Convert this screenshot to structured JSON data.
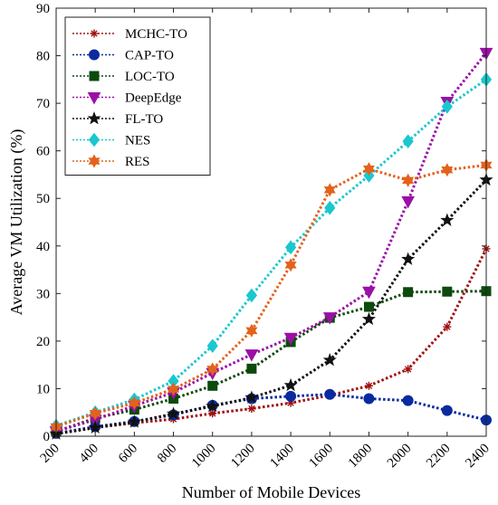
{
  "chart_data": {
    "type": "line",
    "xlabel": "Number of Mobile Devices",
    "ylabel": "Average VM Utilization (%)",
    "x": [
      200,
      400,
      600,
      800,
      1000,
      1200,
      1400,
      1600,
      1800,
      2000,
      2200,
      2400
    ],
    "xlim": [
      200,
      2400
    ],
    "ylim": [
      0,
      90
    ],
    "yticks": [
      0,
      10,
      20,
      30,
      40,
      50,
      60,
      70,
      80,
      90
    ],
    "grid": false,
    "legend_position": "top-left",
    "series": [
      {
        "name": "MCHC-TO",
        "color": "#a01010",
        "marker": "asterisk",
        "values": [
          0.5,
          1.8,
          2.8,
          3.6,
          4.8,
          5.8,
          7.0,
          8.6,
          10.6,
          14.1,
          23.0,
          39.4
        ]
      },
      {
        "name": "CAP-TO",
        "color": "#0a2aa0",
        "marker": "circle",
        "values": [
          0.6,
          2.0,
          3.1,
          4.5,
          6.5,
          7.9,
          8.4,
          8.8,
          7.9,
          7.5,
          5.4,
          3.4
        ]
      },
      {
        "name": "LOC-TO",
        "color": "#0d4a0d",
        "marker": "square",
        "values": [
          1.0,
          3.8,
          5.6,
          7.9,
          10.6,
          14.2,
          19.8,
          24.9,
          27.2,
          30.3,
          30.4,
          30.5
        ]
      },
      {
        "name": "DeepEdge",
        "color": "#9a10a6",
        "marker": "triangle-down",
        "values": [
          1.0,
          3.5,
          6.4,
          9.2,
          13.3,
          17.2,
          20.7,
          25.0,
          30.4,
          49.4,
          70.3,
          80.6
        ]
      },
      {
        "name": "FL-TO",
        "color": "#111111",
        "marker": "star",
        "values": [
          0.5,
          1.8,
          3.0,
          4.7,
          6.3,
          8.1,
          10.7,
          16.0,
          24.6,
          37.2,
          45.4,
          53.9
        ]
      },
      {
        "name": "NES",
        "color": "#1bc7cf",
        "marker": "diamond",
        "values": [
          2.2,
          5.0,
          7.7,
          11.6,
          19.0,
          29.6,
          39.7,
          48.0,
          54.8,
          62.0,
          69.3,
          75.0
        ]
      },
      {
        "name": "RES",
        "color": "#e3621c",
        "marker": "hexagram",
        "values": [
          2.0,
          4.8,
          7.0,
          9.9,
          14.1,
          22.2,
          36.0,
          51.8,
          56.2,
          53.8,
          56.0,
          57.0
        ]
      }
    ]
  }
}
